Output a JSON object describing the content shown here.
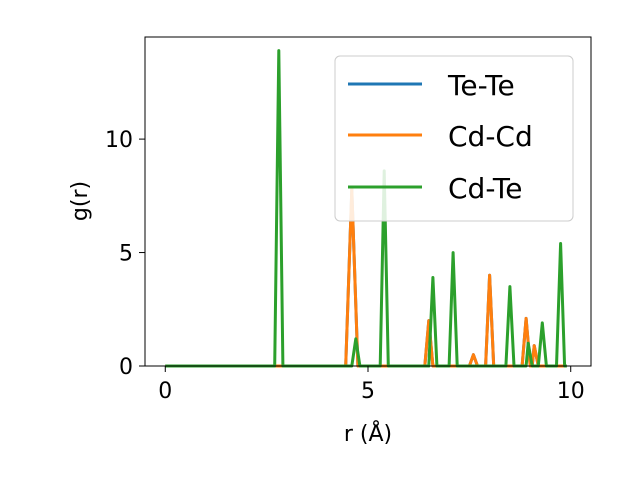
{
  "chart_data": {
    "type": "line",
    "xlabel": "r (Å)",
    "ylabel": "g(r)",
    "xlim": [
      -0.5,
      10.5
    ],
    "ylim": [
      0,
      14.5
    ],
    "xticks": [
      0,
      5,
      10
    ],
    "yticks": [
      0,
      5,
      10
    ],
    "xtick_labels": [
      "0",
      "5",
      "10"
    ],
    "ytick_labels": [
      "0",
      "5",
      "10"
    ],
    "grid": false,
    "legend_position": "top-right",
    "series": [
      {
        "name": "Te-Te",
        "color": "#1f77b4",
        "x": [
          0,
          4.45,
          4.6,
          4.75,
          6.4,
          6.5,
          6.6,
          7.5,
          7.6,
          7.7,
          7.9,
          8.0,
          8.1,
          8.8,
          8.9,
          9.0,
          9.05,
          9.1,
          9.2,
          9.3,
          9.9
        ],
        "y": [
          0,
          0,
          7.8,
          0,
          0,
          2.0,
          0,
          0,
          0.5,
          0,
          0,
          4.0,
          0,
          0,
          2.1,
          0,
          0,
          0.9,
          0,
          0,
          0
        ]
      },
      {
        "name": "Cd-Cd",
        "color": "#ff7f0e",
        "x": [
          0,
          4.45,
          4.6,
          4.75,
          6.4,
          6.5,
          6.6,
          7.5,
          7.6,
          7.7,
          7.9,
          8.0,
          8.1,
          8.8,
          8.9,
          9.0,
          9.05,
          9.1,
          9.2,
          9.3,
          9.9
        ],
        "y": [
          0,
          0,
          7.8,
          0,
          0,
          2.0,
          0,
          0,
          0.5,
          0,
          0,
          4.0,
          0,
          0,
          2.1,
          0,
          0,
          0.9,
          0,
          0,
          0
        ]
      },
      {
        "name": "Cd-Te",
        "color": "#2ca02c",
        "x": [
          0,
          2.7,
          2.8,
          2.9,
          4.6,
          4.7,
          4.8,
          5.3,
          5.4,
          5.5,
          6.5,
          6.6,
          6.7,
          7.0,
          7.1,
          7.2,
          8.4,
          8.5,
          8.6,
          8.9,
          8.95,
          9.05,
          9.2,
          9.3,
          9.4,
          9.65,
          9.75,
          9.85,
          9.9
        ],
        "y": [
          0,
          0,
          13.9,
          0,
          0,
          1.2,
          0,
          0,
          8.6,
          0,
          0,
          3.9,
          0,
          0,
          5.0,
          0,
          0,
          3.5,
          0,
          0,
          1.0,
          0,
          0,
          1.9,
          0,
          0,
          5.4,
          0,
          0
        ]
      }
    ]
  }
}
